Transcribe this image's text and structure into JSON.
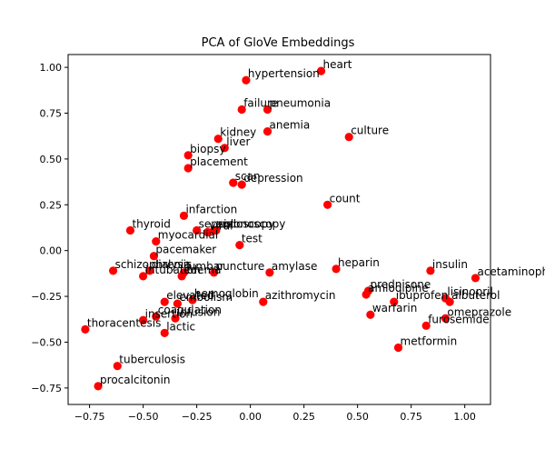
{
  "chart_data": {
    "type": "scatter",
    "title": "PCA of GloVe Embeddings",
    "xlabel": "",
    "ylabel": "",
    "xlim": [
      -0.85,
      1.12
    ],
    "ylim": [
      -0.84,
      1.07
    ],
    "xticks": [
      -0.75,
      -0.5,
      -0.25,
      0.0,
      0.25,
      0.5,
      0.75,
      1.0
    ],
    "xtick_labels": [
      "−0.75",
      "−0.50",
      "−0.25",
      "0.00",
      "0.25",
      "0.50",
      "0.75",
      "1.00"
    ],
    "yticks": [
      -0.75,
      -0.5,
      -0.25,
      0.0,
      0.25,
      0.5,
      0.75,
      1.0
    ],
    "ytick_labels": [
      "−0.75",
      "−0.50",
      "−0.25",
      "0.00",
      "0.25",
      "0.50",
      "0.75",
      "1.00"
    ],
    "grid": false,
    "marker_color": "#ff0000",
    "points": [
      {
        "label": "heart",
        "x": 0.33,
        "y": 0.98
      },
      {
        "label": "hypertension",
        "x": -0.02,
        "y": 0.93
      },
      {
        "label": "failure",
        "x": -0.04,
        "y": 0.77
      },
      {
        "label": "pneumonia",
        "x": 0.08,
        "y": 0.77
      },
      {
        "label": "anemia",
        "x": 0.08,
        "y": 0.65
      },
      {
        "label": "culture",
        "x": 0.46,
        "y": 0.62
      },
      {
        "label": "kidney",
        "x": -0.15,
        "y": 0.61
      },
      {
        "label": "liver",
        "x": -0.12,
        "y": 0.56
      },
      {
        "label": "biopsy",
        "x": -0.29,
        "y": 0.52
      },
      {
        "label": "placement",
        "x": -0.29,
        "y": 0.45
      },
      {
        "label": "scan",
        "x": -0.08,
        "y": 0.37
      },
      {
        "label": "depression",
        "x": -0.04,
        "y": 0.36
      },
      {
        "label": "count",
        "x": 0.36,
        "y": 0.25
      },
      {
        "label": "infarction",
        "x": -0.31,
        "y": 0.19
      },
      {
        "label": "thyroid",
        "x": -0.56,
        "y": 0.11
      },
      {
        "label": "sepsis",
        "x": -0.25,
        "y": 0.11
      },
      {
        "label": "colonoscopy",
        "x": -0.16,
        "y": 0.11
      },
      {
        "label": "viral",
        "x": -0.2,
        "y": 0.1
      },
      {
        "label": "endoscopy",
        "x": -0.17,
        "y": 0.11
      },
      {
        "label": "myocardial",
        "x": -0.44,
        "y": 0.05
      },
      {
        "label": "test",
        "x": -0.05,
        "y": 0.03
      },
      {
        "label": "pacemaker",
        "x": -0.45,
        "y": -0.03
      },
      {
        "label": "schizophrenia",
        "x": -0.64,
        "y": -0.11
      },
      {
        "label": "dialysis",
        "x": -0.47,
        "y": -0.11
      },
      {
        "label": "intubation",
        "x": -0.5,
        "y": -0.14
      },
      {
        "label": "edema",
        "x": -0.32,
        "y": -0.14
      },
      {
        "label": "lumbar",
        "x": -0.31,
        "y": -0.12
      },
      {
        "label": "puncture",
        "x": -0.17,
        "y": -0.12
      },
      {
        "label": "amylase",
        "x": 0.09,
        "y": -0.12
      },
      {
        "label": "heparin",
        "x": 0.4,
        "y": -0.1
      },
      {
        "label": "insulin",
        "x": 0.84,
        "y": -0.11
      },
      {
        "label": "acetaminophen",
        "x": 1.05,
        "y": -0.15
      },
      {
        "label": "prednisone",
        "x": 0.55,
        "y": -0.22
      },
      {
        "label": "amlodipine",
        "x": 0.54,
        "y": -0.24
      },
      {
        "label": "lisinopril",
        "x": 0.91,
        "y": -0.26
      },
      {
        "label": "ibuprofen",
        "x": 0.67,
        "y": -0.28
      },
      {
        "label": "albuterol",
        "x": 0.93,
        "y": -0.28
      },
      {
        "label": "hemoglobin",
        "x": -0.27,
        "y": -0.27
      },
      {
        "label": "azithromycin",
        "x": 0.06,
        "y": -0.28
      },
      {
        "label": "elevated",
        "x": -0.4,
        "y": -0.28
      },
      {
        "label": "embolism",
        "x": -0.34,
        "y": -0.29
      },
      {
        "label": "coagulation",
        "x": -0.44,
        "y": -0.36
      },
      {
        "label": "insertion",
        "x": -0.5,
        "y": -0.38
      },
      {
        "label": "infusion",
        "x": -0.35,
        "y": -0.37
      },
      {
        "label": "lactic",
        "x": -0.4,
        "y": -0.45
      },
      {
        "label": "warfarin",
        "x": 0.56,
        "y": -0.35
      },
      {
        "label": "omeprazole",
        "x": 0.91,
        "y": -0.37
      },
      {
        "label": "furosemide",
        "x": 0.82,
        "y": -0.41
      },
      {
        "label": "thoracentesis",
        "x": -0.77,
        "y": -0.43
      },
      {
        "label": "metformin",
        "x": 0.69,
        "y": -0.53
      },
      {
        "label": "tuberculosis",
        "x": -0.62,
        "y": -0.63
      },
      {
        "label": "procalcitonin",
        "x": -0.71,
        "y": -0.74
      }
    ]
  }
}
